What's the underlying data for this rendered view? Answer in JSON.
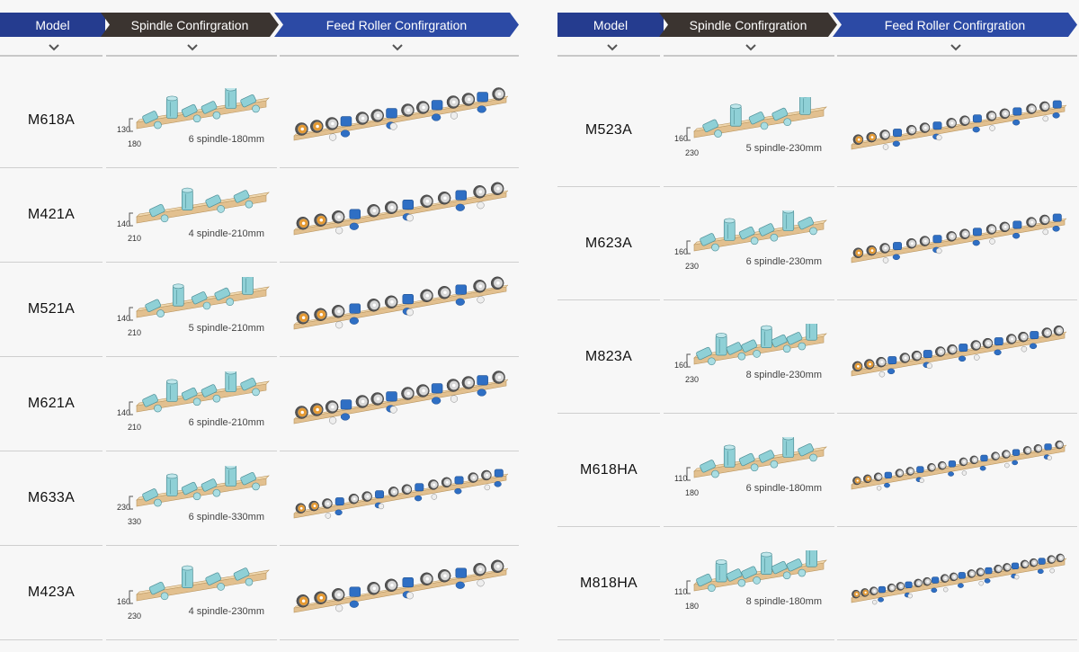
{
  "headers": {
    "model": "Model",
    "spindle": "Spindle Confirgration",
    "feed": "Feed Roller Confirgration"
  },
  "left_rows": [
    {
      "model": "M618A",
      "dim_a": "130",
      "dim_b": "180",
      "spec": "6 spindle-180mm",
      "spindles": 6,
      "rollers": 14
    },
    {
      "model": "M421A",
      "dim_a": "140",
      "dim_b": "210",
      "spec": "4 spindle-210mm",
      "spindles": 4,
      "rollers": 12
    },
    {
      "model": "M521A",
      "dim_a": "140",
      "dim_b": "210",
      "spec": "5 spindle-210mm",
      "spindles": 5,
      "rollers": 12
    },
    {
      "model": "M621A",
      "dim_a": "140",
      "dim_b": "210",
      "spec": "6 spindle-210mm",
      "spindles": 6,
      "rollers": 14
    },
    {
      "model": "M633A",
      "dim_a": "230",
      "dim_b": "330",
      "spec": "6 spindle-330mm",
      "spindles": 6,
      "rollers": 16
    },
    {
      "model": "M423A",
      "dim_a": "160",
      "dim_b": "230",
      "spec": "4 spindle-230mm",
      "spindles": 4,
      "rollers": 12
    }
  ],
  "right_rows": [
    {
      "model": "M523A",
      "dim_a": "160",
      "dim_b": "230",
      "spec": "5 spindle-230mm",
      "spindles": 5,
      "rollers": 16
    },
    {
      "model": "M623A",
      "dim_a": "160",
      "dim_b": "230",
      "spec": "6 spindle-230mm",
      "spindles": 6,
      "rollers": 16
    },
    {
      "model": "M823A",
      "dim_a": "160",
      "dim_b": "230",
      "spec": "8 spindle-230mm",
      "spindles": 8,
      "rollers": 18
    },
    {
      "model": "M618HA",
      "dim_a": "110",
      "dim_b": "180",
      "spec": "6 spindle-180mm",
      "spindles": 6,
      "rollers": 20
    },
    {
      "model": "M818HA",
      "dim_a": "110",
      "dim_b": "180",
      "spec": "8 spindle-180mm",
      "spindles": 8,
      "rollers": 24
    }
  ],
  "colors": {
    "model_header": "#253c8f",
    "spindle_header": "#3b3430",
    "feed_header": "#2c4aa5",
    "beam": "#e2c08f",
    "spindle": "#8fd0d6",
    "roller_blue": "#2f6fc4",
    "roller_orange": "#e59a33",
    "roller_grey": "#8a8a8a"
  }
}
